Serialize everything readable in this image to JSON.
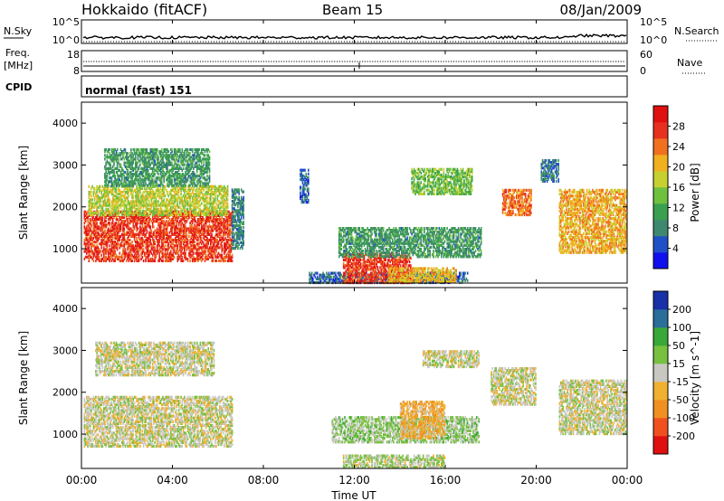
{
  "header": {
    "station": "Hokkaido (fitACF)",
    "beam": "Beam 15",
    "date": "08/Jan/2009"
  },
  "status_panels": {
    "nsky": {
      "label": "N.Sky",
      "ticks": [
        "10^5",
        "10^0"
      ]
    },
    "nsearch": {
      "label": "N.Search",
      "ticks": [
        "10^5",
        "10^0"
      ]
    },
    "freq": {
      "label_line1": "Freq.",
      "label_line2": "[MHz]",
      "ticks": [
        "18",
        "8"
      ]
    },
    "nave": {
      "label": "Nave",
      "ticks": [
        "60",
        "0"
      ]
    },
    "cpid": {
      "label": "CPID",
      "text": "normal (fast) 151"
    }
  },
  "chart_data": [
    {
      "type": "heatmap",
      "name": "power",
      "xlabel": "Time UT",
      "ylabel": "Slant Range [km]",
      "xlim": [
        0,
        24
      ],
      "ylim": [
        180,
        4500
      ],
      "x_ticks": [
        "00:00",
        "04:00",
        "08:00",
        "12:00",
        "16:00",
        "20:00",
        "00:00"
      ],
      "y_ticks": [
        "1000",
        "2000",
        "3000",
        "4000"
      ],
      "colorbar": {
        "label": "Power [dB]",
        "ticks": [
          "28",
          "24",
          "20",
          "16",
          "12",
          "8",
          "4"
        ],
        "range": [
          0,
          32
        ],
        "colors": [
          "#1010ee",
          "#2050c8",
          "#3f8870",
          "#3aa050",
          "#70c040",
          "#c8d030",
          "#f0b020",
          "#f07020",
          "#e83020",
          "#e01010"
        ]
      },
      "echo_regions": [
        {
          "t": [
            0.1,
            6.6
          ],
          "r": [
            700,
            1900
          ],
          "level": 27
        },
        {
          "t": [
            0.3,
            6.4
          ],
          "r": [
            1800,
            2500
          ],
          "level": 17
        },
        {
          "t": [
            1.0,
            5.6
          ],
          "r": [
            2500,
            3400
          ],
          "level": 10
        },
        {
          "t": [
            6.6,
            7.1
          ],
          "r": [
            1000,
            2400
          ],
          "level": 8
        },
        {
          "t": [
            9.6,
            10.0
          ],
          "r": [
            2100,
            2900
          ],
          "level": 6
        },
        {
          "t": [
            10.0,
            17.0
          ],
          "r": [
            180,
            450
          ],
          "level": 6
        },
        {
          "t": [
            11.5,
            14.5
          ],
          "r": [
            180,
            900
          ],
          "level": 27
        },
        {
          "t": [
            13.5,
            16.5
          ],
          "r": [
            200,
            550
          ],
          "level": 20
        },
        {
          "t": [
            11.3,
            17.6
          ],
          "r": [
            800,
            1500
          ],
          "level": 10
        },
        {
          "t": [
            14.5,
            17.2
          ],
          "r": [
            2300,
            2900
          ],
          "level": 14
        },
        {
          "t": [
            18.5,
            19.8
          ],
          "r": [
            1800,
            2400
          ],
          "level": 24
        },
        {
          "t": [
            20.2,
            21.0
          ],
          "r": [
            2600,
            3100
          ],
          "level": 7
        },
        {
          "t": [
            21.0,
            24.0
          ],
          "r": [
            900,
            2400
          ],
          "level": 21
        }
      ]
    },
    {
      "type": "heatmap",
      "name": "velocity",
      "xlabel": "Time UT",
      "ylabel": "Slant Range [km]",
      "xlim": [
        0,
        24
      ],
      "ylim": [
        180,
        4500
      ],
      "x_ticks": [
        "00:00",
        "04:00",
        "08:00",
        "12:00",
        "16:00",
        "20:00",
        "00:00"
      ],
      "y_ticks": [
        "1000",
        "2000",
        "3000",
        "4000"
      ],
      "colorbar": {
        "label": "Velocity [m s^-1]",
        "ticks": [
          "200",
          "100",
          "50",
          "15",
          "-15",
          "-50",
          "-100",
          "-200"
        ],
        "range": [
          -250,
          250
        ],
        "colors": [
          "#e01010",
          "#f05020",
          "#f09020",
          "#f0b030",
          "#c8c8c0",
          "#78c040",
          "#38a838",
          "#2a6e9a",
          "#1830a8"
        ]
      },
      "echo_regions": [
        {
          "t": [
            0.1,
            6.6
          ],
          "r": [
            700,
            1900
          ],
          "level": 0
        },
        {
          "t": [
            0.6,
            5.8
          ],
          "r": [
            2400,
            3200
          ],
          "level": 0
        },
        {
          "t": [
            11.5,
            16.0
          ],
          "r": [
            200,
            500
          ],
          "level": 20
        },
        {
          "t": [
            11.0,
            17.5
          ],
          "r": [
            800,
            1400
          ],
          "level": 40
        },
        {
          "t": [
            14.0,
            16.0
          ],
          "r": [
            900,
            1800
          ],
          "level": -60
        },
        {
          "t": [
            15.0,
            17.5
          ],
          "r": [
            2600,
            3000
          ],
          "level": 0
        },
        {
          "t": [
            18.0,
            20.0
          ],
          "r": [
            1700,
            2600
          ],
          "level": 0
        },
        {
          "t": [
            21.0,
            24.0
          ],
          "r": [
            1000,
            2300
          ],
          "level": 0
        }
      ]
    }
  ]
}
